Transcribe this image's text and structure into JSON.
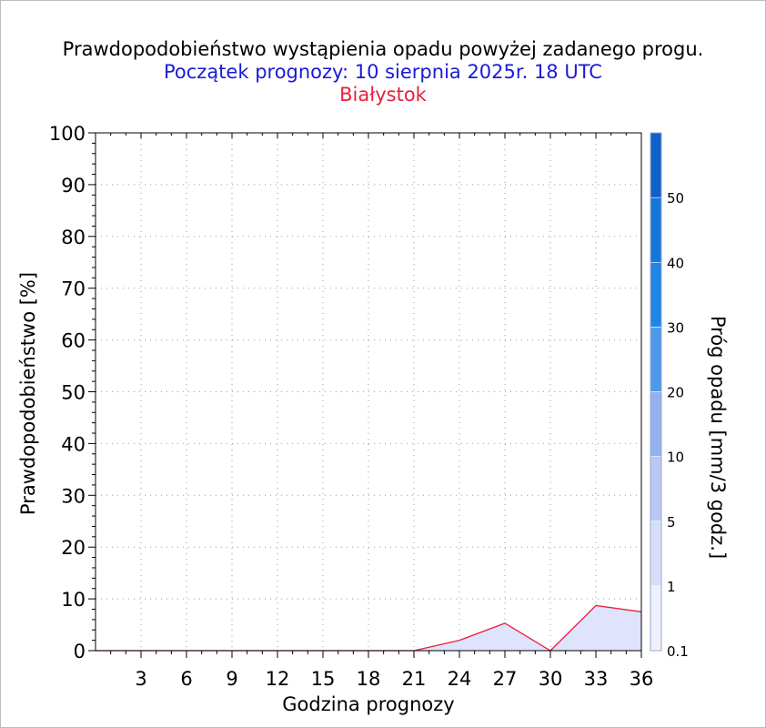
{
  "title": "Prawdopodobieństwo wystąpienia opadu powyżej zadanego progu.",
  "subtitle": "Początek prognozy: 10 sierpnia 2025r. 18 UTC",
  "location": "Białystok",
  "colors": {
    "title": "#000000",
    "subtitle": "#1a1ad8",
    "location": "#e8203c",
    "series_line": "#e8203c",
    "series_fill": "#dfe3fb",
    "grid": "#9a9a9a"
  },
  "chart_data": {
    "type": "area",
    "title": "Prawdopodobieństwo wystąpienia opadu powyżej zadanego progu.",
    "xlabel": "Godzina prognozy",
    "ylabel": "Prawdopodobieństwo [%]",
    "xlim": [
      0,
      36
    ],
    "ylim": [
      0,
      100
    ],
    "x_ticks": [
      3,
      6,
      9,
      12,
      15,
      18,
      21,
      24,
      27,
      30,
      33,
      36
    ],
    "y_ticks": [
      0,
      10,
      20,
      30,
      40,
      50,
      60,
      70,
      80,
      90,
      100
    ],
    "grid": true,
    "series": [
      {
        "x": [
          0,
          3,
          6,
          9,
          12,
          15,
          18,
          21,
          24,
          27,
          30,
          33,
          36
        ],
        "values": [
          0,
          0,
          0,
          0,
          0,
          0,
          0,
          0,
          2,
          5.3,
          0,
          8.7,
          7.5
        ]
      }
    ],
    "colorbar": {
      "label": "Próg opadu [mm/3 godz.]",
      "tick_labels": [
        "0.1",
        "1",
        "5",
        "10",
        "20",
        "30",
        "40",
        "50"
      ],
      "colors": [
        "#eef1fd",
        "#d6def8",
        "#b8c8f3",
        "#93b1ee",
        "#4c99ea",
        "#1f86e6",
        "#1676d8",
        "#0f61c8",
        "#0a4cae"
      ]
    }
  }
}
